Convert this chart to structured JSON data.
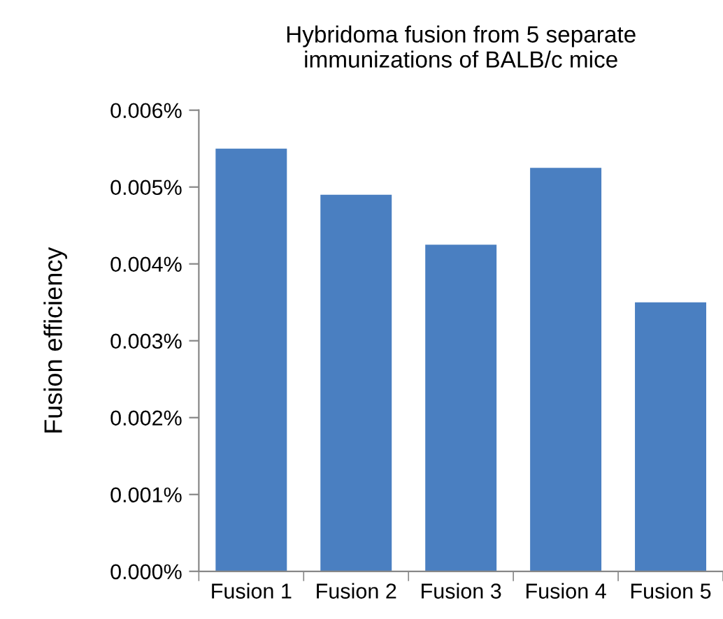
{
  "chart_data": {
    "type": "bar",
    "title": "Hybridoma fusion from 5 separate\nimmunizations of BALB/c mice",
    "ylabel": "Fusion efficiency",
    "categories": [
      "Fusion 1",
      "Fusion 2",
      "Fusion 3",
      "Fusion 4",
      "Fusion 5"
    ],
    "values": [
      0.0055,
      0.0049,
      0.00425,
      0.00525,
      0.0035
    ],
    "color": "#4a7fc1",
    "ylim": [
      0,
      0.006
    ],
    "yticks": [
      {
        "value": 0,
        "label": "0.000%"
      },
      {
        "value": 0.001,
        "label": "0.001%"
      },
      {
        "value": 0.002,
        "label": "0.002%"
      },
      {
        "value": 0.003,
        "label": "0.003%"
      },
      {
        "value": 0.004,
        "label": "0.004%"
      },
      {
        "value": 0.005,
        "label": "0.005%"
      },
      {
        "value": 0.006,
        "label": "0.006%"
      }
    ],
    "grid": false,
    "legend": false
  }
}
